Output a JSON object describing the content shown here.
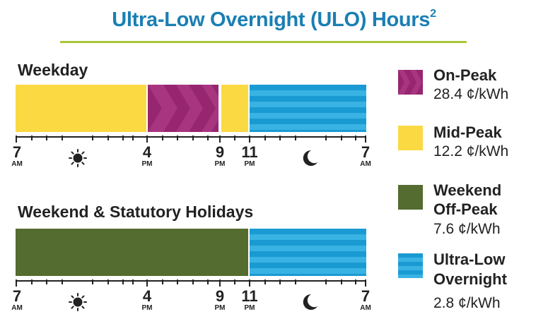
{
  "title": "Ultra-Low Overnight (ULO) Hours",
  "title_sup": "2",
  "colors": {
    "title": "#1a7fb3",
    "rule": "#a9c63a",
    "on_peak": "#962670",
    "mid_peak": "#fbd943",
    "weekend_off_peak": "#546c2f",
    "ulo": "#1a9ad2"
  },
  "weekday": {
    "label": "Weekday",
    "segments": [
      {
        "period": "Mid-Peak",
        "start": "7 AM",
        "end": "4 PM"
      },
      {
        "period": "On-Peak",
        "start": "4 PM",
        "end": "9 PM"
      },
      {
        "period": "Mid-Peak",
        "start": "9 PM",
        "end": "11 PM"
      },
      {
        "period": "Ultra-Low Overnight",
        "start": "11 PM",
        "end": "7 AM"
      }
    ]
  },
  "weekend": {
    "label": "Weekend & Statutory Holidays",
    "segments": [
      {
        "period": "Weekend Off-Peak",
        "start": "7 AM",
        "end": "11 PM"
      },
      {
        "period": "Ultra-Low Overnight",
        "start": "11 PM",
        "end": "7 AM"
      }
    ]
  },
  "axis": {
    "ticks": [
      {
        "hour": "7",
        "ampm": "AM"
      },
      {
        "hour": "4",
        "ampm": "PM"
      },
      {
        "hour": "9",
        "ampm": "PM"
      },
      {
        "hour": "11",
        "ampm": "PM"
      },
      {
        "hour": "7",
        "ampm": "AM"
      }
    ],
    "day_icon": "sun-icon",
    "night_icon": "moon-icon"
  },
  "legend": [
    {
      "name_lines": [
        "On-Peak"
      ],
      "price": "28.4 ¢/kWh",
      "icon": "on-peak-swatch"
    },
    {
      "name_lines": [
        "Mid-Peak"
      ],
      "price": "12.2 ¢/kWh",
      "icon": "mid-peak-swatch"
    },
    {
      "name_lines": [
        "Weekend",
        "Off-Peak"
      ],
      "price": "7.6 ¢/kWh",
      "icon": "weekend-off-peak-swatch"
    },
    {
      "name_lines": [
        "Ultra-Low",
        "Overnight"
      ],
      "price": "2.8 ¢/kWh",
      "icon": "ulo-swatch"
    }
  ]
}
